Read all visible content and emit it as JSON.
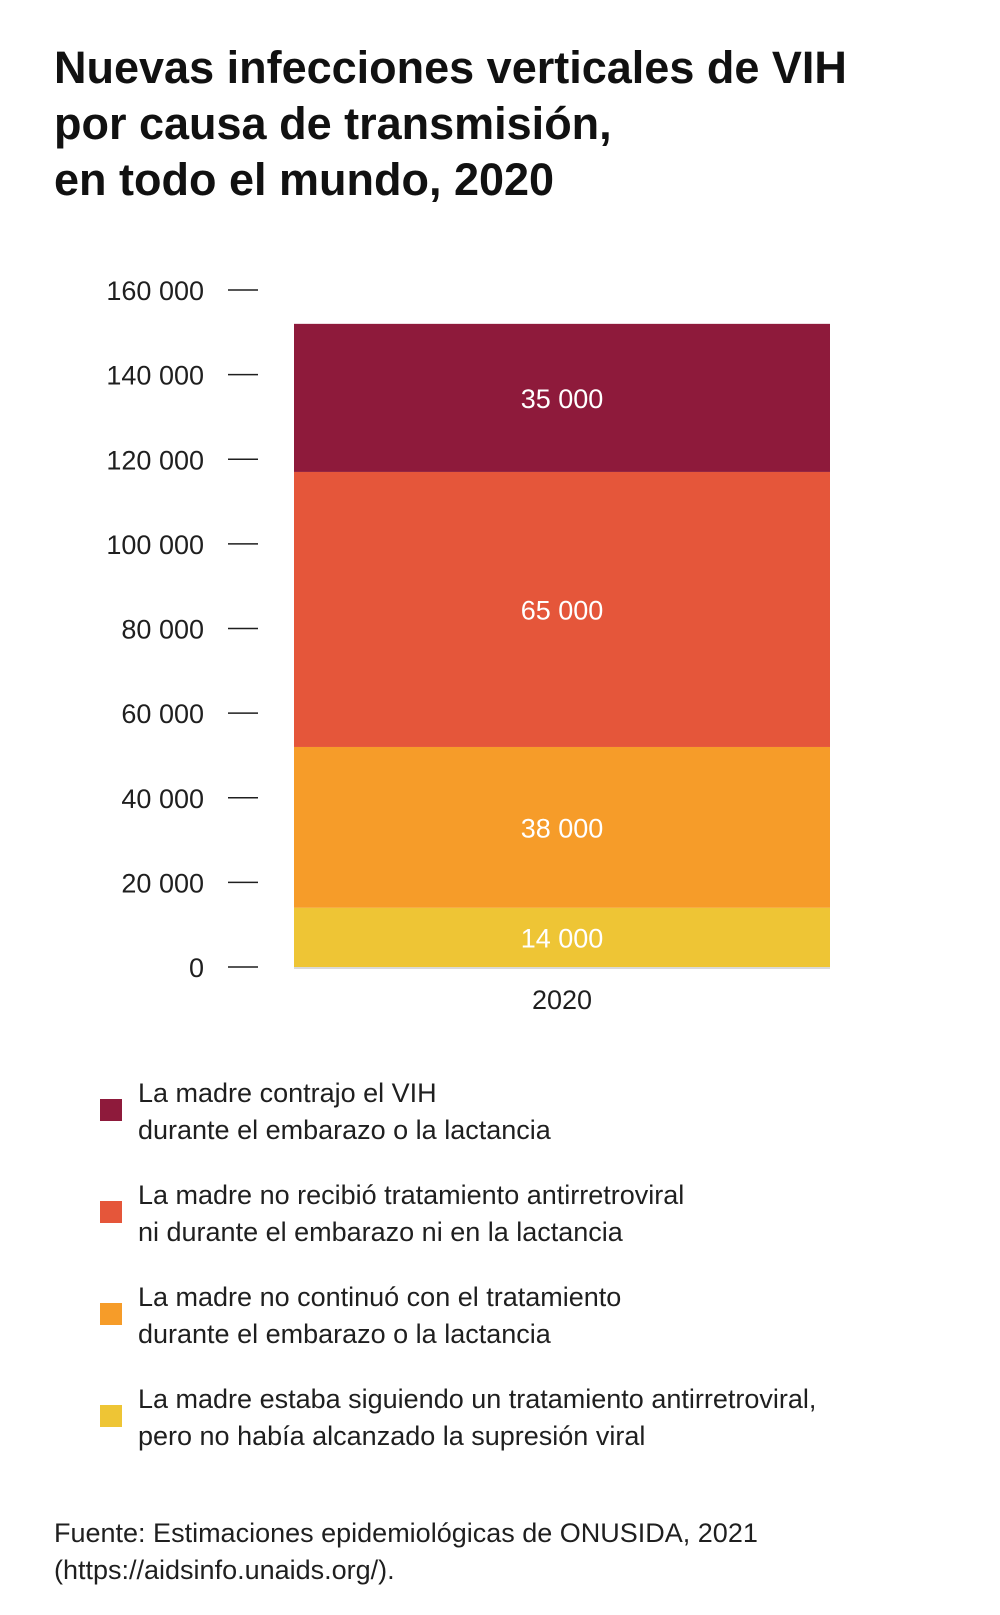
{
  "title_lines": [
    "Nuevas infecciones verticales de VIH",
    "por causa de transmisión,",
    "en todo el mundo, 2020"
  ],
  "chart_data": {
    "type": "bar",
    "stacked": true,
    "categories": [
      "2020"
    ],
    "series": [
      {
        "name": "La madre estaba siguiendo un tratamiento antirretroviral, pero no había alcanzado la supresión viral",
        "values": [
          14000
        ],
        "label": "14 000",
        "color": "#EEC535"
      },
      {
        "name": "La madre no continuó con el tratamiento durante el embarazo o la lactancia",
        "values": [
          38000
        ],
        "label": "38 000",
        "color": "#F69C29"
      },
      {
        "name": "La madre no recibió tratamiento antirretroviral ni durante el embarazo ni en la lactancia",
        "values": [
          65000
        ],
        "label": "65 000",
        "color": "#E5563A"
      },
      {
        "name": "La madre contrajo el VIH durante el embarazo o la lactancia",
        "values": [
          35000
        ],
        "label": "35 000",
        "color": "#8E1A3B"
      }
    ],
    "yticks": [
      0,
      20000,
      40000,
      60000,
      80000,
      100000,
      120000,
      140000,
      160000
    ],
    "ytick_labels": [
      "0",
      "20 000",
      "40 000",
      "60 000",
      "80 000",
      "100 000",
      "120 000",
      "140 000",
      "160 000"
    ],
    "ylim": [
      0,
      160000
    ],
    "xlabel": "",
    "ylabel": "",
    "grid": false,
    "legend_position": "bottom"
  },
  "legend": [
    {
      "lines": [
        "La madre contrajo el VIH",
        "durante el embarazo o la lactancia"
      ],
      "color": "#8E1A3B"
    },
    {
      "lines": [
        "La madre no recibió tratamiento antirretroviral",
        "ni durante el embarazo ni en la lactancia"
      ],
      "color": "#E5563A"
    },
    {
      "lines": [
        "La madre no continuó con el tratamiento",
        "durante el embarazo o la lactancia"
      ],
      "color": "#F69C29"
    },
    {
      "lines": [
        "La madre estaba siguiendo un tratamiento antirretroviral,",
        "pero no había alcanzado la supresión viral"
      ],
      "color": "#EEC535"
    }
  ],
  "source_lines": [
    "Fuente: Estimaciones epidemiológicas de ONUSIDA, 2021",
    "(https://aidsinfo.unaids.org/)."
  ]
}
